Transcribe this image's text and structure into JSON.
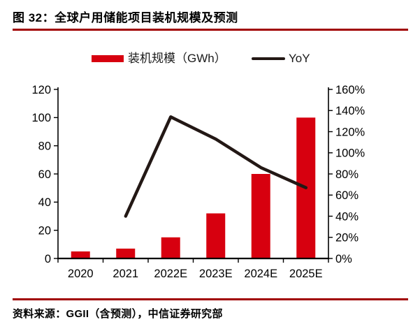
{
  "header": {
    "title": "图 32：全球户用储能项目装机规模及预测"
  },
  "legend": {
    "bar_label": "装机规模（GWh）",
    "line_label": "YoY"
  },
  "footer": {
    "source": "资料来源：GGII（含预测），中信证券研究部"
  },
  "colors": {
    "bar": "#d7000f",
    "line": "#231815",
    "rule": "#a00000",
    "axis": "#000000",
    "tick_text": "#000000"
  },
  "chart_data": {
    "type": "bar",
    "title": "全球户用储能项目装机规模及预测",
    "categories": [
      "2020",
      "2021",
      "2022E",
      "2023E",
      "2024E",
      "2025E"
    ],
    "series": [
      {
        "name": "装机规模（GWh）",
        "type": "bar",
        "axis": "left",
        "values": [
          5,
          7,
          15,
          32,
          60,
          100
        ]
      },
      {
        "name": "YoY",
        "type": "line",
        "axis": "right",
        "unit": "%",
        "values": [
          null,
          40,
          134,
          113,
          86,
          67
        ]
      }
    ],
    "left_axis": {
      "min": 0,
      "max": 120,
      "step": 20,
      "tick_labels": [
        "0",
        "20",
        "40",
        "60",
        "80",
        "100",
        "120"
      ]
    },
    "right_axis": {
      "min": 0,
      "max": 160,
      "step": 20,
      "tick_labels": [
        "0%",
        "20%",
        "40%",
        "60%",
        "80%",
        "100%",
        "120%",
        "140%",
        "160%"
      ]
    },
    "grid": false,
    "legend_position": "top",
    "xlabel": "",
    "ylabel": ""
  }
}
